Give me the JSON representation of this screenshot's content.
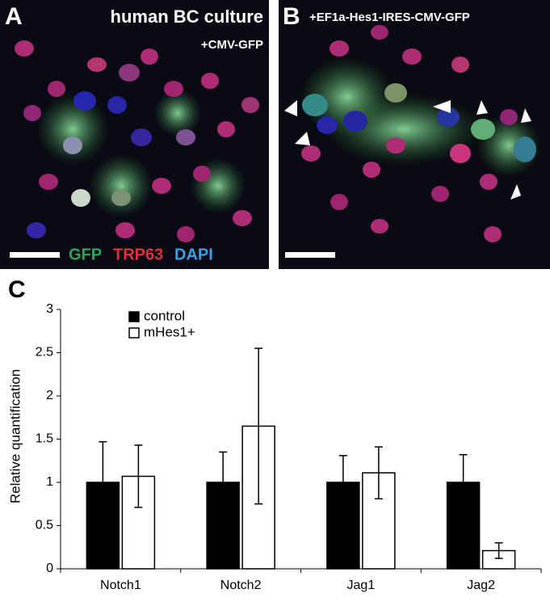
{
  "panels": [
    {
      "label": "A",
      "title": "human BC culture",
      "subtitle": "+CMV-GFP",
      "stains": [
        "GFP",
        "TRP63",
        "DAPI"
      ]
    },
    {
      "label": "B",
      "title": "+EF1a-Hes1-IRES-CMV-GFP"
    }
  ],
  "chart_data": {
    "type": "bar",
    "label": "C",
    "y_label": "Relative quantification",
    "categories": [
      "Notch1",
      "Notch2",
      "Jag1",
      "Jag2"
    ],
    "series": [
      {
        "name": "control",
        "color": "#000000",
        "values": [
          1,
          1,
          1,
          1
        ],
        "errors": [
          0.47,
          0.35,
          0.31,
          0.32
        ]
      },
      {
        "name": "mHes1+",
        "color": "#ffffff",
        "values": [
          1.07,
          1.65,
          1.11,
          0.21
        ],
        "errors": [
          0.36,
          0.9,
          0.3,
          0.09
        ]
      }
    ],
    "ylim": [
      0,
      3
    ],
    "yticks": [
      0,
      0.5,
      1,
      1.5,
      2,
      2.5,
      3
    ],
    "legend": "upper left"
  }
}
